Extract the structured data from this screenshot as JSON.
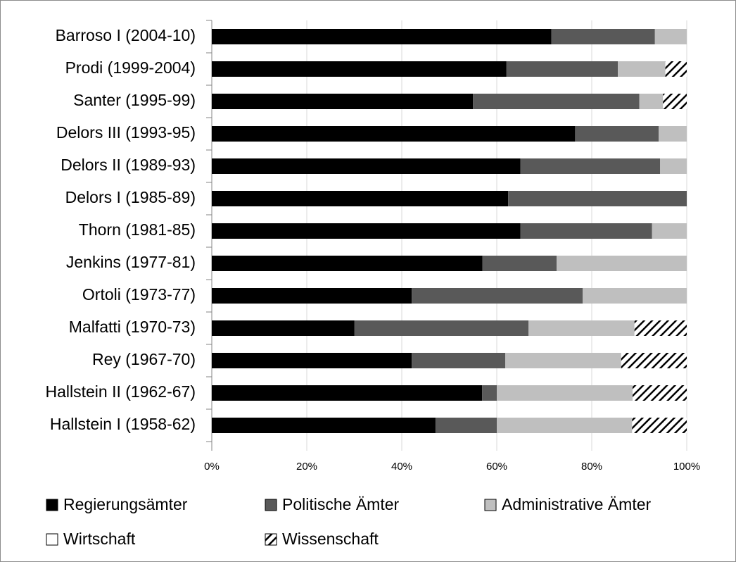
{
  "chart_data": {
    "type": "stacked-bar-horizontal",
    "categories": [
      "Barroso I (2004-10)",
      "Prodi (1999-2004)",
      "Santer (1995-99)",
      "Delors III (1993-95)",
      "Delors II (1989-93)",
      "Delors I (1985-89)",
      "Thorn (1981-85)",
      "Jenkins (1977-81)",
      "Ortoli (1973-77)",
      "Malfatti (1970-73)",
      "Rey (1967-70)",
      "Hallstein II (1962-67)",
      "Hallstein I (1958-62)"
    ],
    "series": [
      {
        "name": "Regierungsämter",
        "color": "#000000",
        "values": [
          71.5,
          62,
          55,
          76.5,
          65,
          62.4,
          65,
          57,
          42.1,
          30,
          42.1,
          56.9,
          47.1
        ]
      },
      {
        "name": "Politische Ämter",
        "color": "#595959",
        "values": [
          21.8,
          23.5,
          35,
          17.6,
          29.4,
          37.6,
          27.7,
          15.6,
          36,
          36.7,
          19.7,
          3.1,
          12.9
        ]
      },
      {
        "name": "Administrative Ämter",
        "color": "#bfbfbf",
        "values": [
          6.7,
          10,
          5,
          5.9,
          5.6,
          0,
          7.3,
          27.4,
          21.9,
          22.3,
          24.4,
          28.6,
          28.5
        ]
      },
      {
        "name": "Wirtschaft",
        "color": "#ffffff",
        "values": [
          0,
          0,
          0,
          0,
          0,
          0,
          0,
          0,
          0,
          0,
          0,
          0,
          0
        ]
      },
      {
        "name": "Wissenschaft",
        "color": "#000000",
        "pattern": "hatch",
        "values": [
          0,
          4.5,
          5,
          0,
          0,
          0,
          0,
          0,
          0,
          11,
          13.8,
          11.4,
          11.5
        ]
      }
    ],
    "xlim": [
      0,
      100
    ],
    "xticks": [
      {
        "value": 0,
        "label": "0%"
      },
      {
        "value": 20,
        "label": "20%"
      },
      {
        "value": 40,
        "label": "40%"
      },
      {
        "value": 60,
        "label": "60%"
      },
      {
        "value": 80,
        "label": "80%"
      },
      {
        "value": 100,
        "label": "100%"
      }
    ],
    "grid": true
  }
}
